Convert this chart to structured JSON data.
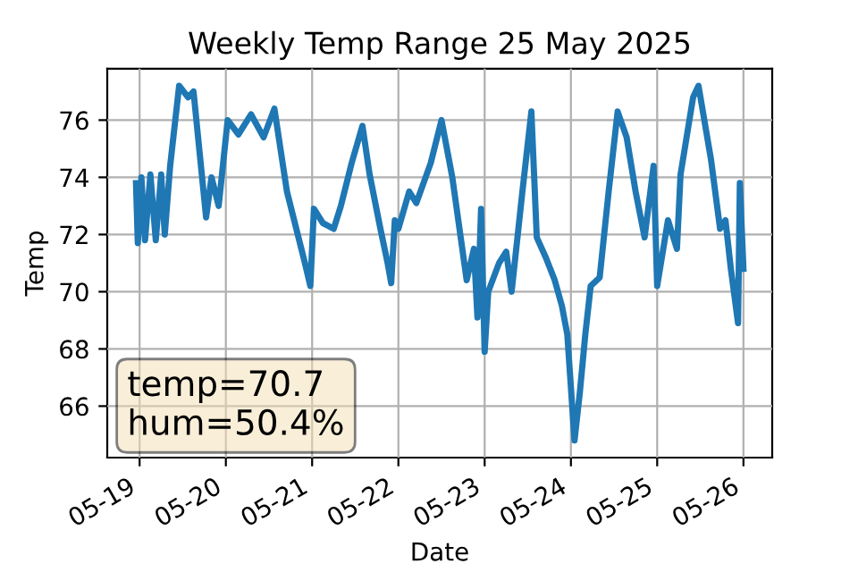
{
  "chart_data": {
    "type": "line",
    "title": "Weekly Temp Range 25 May 2025",
    "xlabel": "Date",
    "ylabel": "Temp",
    "annotations": [
      "temp=70.7\nhum=50.4%"
    ],
    "x": [
      "2025-05-18T23:00",
      "2025-05-18T23:30",
      "2025-05-19T00:30",
      "2025-05-19T01:30",
      "2025-05-19T03:00",
      "2025-05-19T04:30",
      "2025-05-19T06:00",
      "2025-05-19T07:00",
      "2025-05-19T08:30",
      "2025-05-19T11:00",
      "2025-05-19T13:30",
      "2025-05-19T15:00",
      "2025-05-19T18:30",
      "2025-05-19T20:00",
      "2025-05-19T22:00",
      "2025-05-20T00:30",
      "2025-05-20T03:30",
      "2025-05-20T07:00",
      "2025-05-20T10:30",
      "2025-05-20T13:30",
      "2025-05-20T17:00",
      "2025-05-20T20:00",
      "2025-05-20T22:00",
      "2025-05-20T23:30",
      "2025-05-21T00:30",
      "2025-05-21T03:00",
      "2025-05-21T06:00",
      "2025-05-21T08:00",
      "2025-05-21T11:00",
      "2025-05-21T14:00",
      "2025-05-21T16:00",
      "2025-05-21T19:00",
      "2025-05-21T21:00",
      "2025-05-21T22:00",
      "2025-05-21T23:00",
      "2025-05-22T00:00",
      "2025-05-22T03:00",
      "2025-05-22T05:00",
      "2025-05-22T09:00",
      "2025-05-22T12:00",
      "2025-05-22T15:00",
      "2025-05-22T17:00",
      "2025-05-22T19:00",
      "2025-05-22T21:00",
      "2025-05-22T22:00",
      "2025-05-22T23:00",
      "2025-05-23T00:00",
      "2025-05-23T01:00",
      "2025-05-23T04:00",
      "2025-05-23T06:00",
      "2025-05-23T07:30",
      "2025-05-23T10:30",
      "2025-05-23T13:00",
      "2025-05-23T14:30",
      "2025-05-23T17:00",
      "2025-05-23T19:30",
      "2025-05-23T21:30",
      "2025-05-23T23:00",
      "2025-05-24T01:00",
      "2025-05-24T02:30",
      "2025-05-24T04:00",
      "2025-05-24T05:30",
      "2025-05-24T08:00",
      "2025-05-24T10:30",
      "2025-05-24T13:00",
      "2025-05-24T15:30",
      "2025-05-24T18:00",
      "2025-05-24T20:30",
      "2025-05-24T23:00",
      "2025-05-25T00:00",
      "2025-05-25T03:00",
      "2025-05-25T05:30",
      "2025-05-25T06:30",
      "2025-05-25T10:00",
      "2025-05-25T11:30",
      "2025-05-25T15:00",
      "2025-05-25T17:30",
      "2025-05-25T19:00",
      "2025-05-25T20:30",
      "2025-05-25T22:30",
      "2025-05-25T23:00",
      "2025-05-26T00:00"
    ],
    "series": [
      {
        "color": "#1f77b4",
        "values": [
          73.8,
          71.7,
          74.0,
          71.8,
          74.1,
          71.8,
          74.1,
          72.0,
          74.4,
          77.2,
          76.8,
          77.0,
          72.6,
          74.0,
          73.0,
          76.0,
          75.5,
          76.2,
          75.4,
          76.4,
          73.5,
          72.0,
          71.0,
          70.2,
          72.9,
          72.4,
          72.2,
          73.0,
          74.5,
          75.8,
          74.1,
          72.2,
          71.0,
          70.3,
          72.5,
          72.2,
          73.5,
          73.1,
          74.5,
          76.0,
          74.0,
          72.2,
          70.4,
          71.5,
          69.1,
          72.9,
          67.9,
          70.0,
          71.0,
          71.4,
          70.0,
          73.5,
          76.3,
          71.9,
          71.2,
          70.4,
          69.5,
          68.5,
          64.8,
          66.5,
          68.5,
          70.2,
          70.5,
          73.5,
          76.3,
          75.4,
          73.5,
          71.9,
          74.4,
          70.2,
          72.5,
          71.5,
          74.1,
          76.8,
          77.2,
          74.6,
          72.2,
          72.5,
          70.8,
          68.9,
          73.8,
          70.8
        ]
      }
    ],
    "xlim": [
      "2025-05-18T15:00",
      "2025-05-26T08:00"
    ],
    "xticks": [
      {
        "value": "2025-05-19",
        "label": "05-19"
      },
      {
        "value": "2025-05-20",
        "label": "05-20"
      },
      {
        "value": "2025-05-21",
        "label": "05-21"
      },
      {
        "value": "2025-05-22",
        "label": "05-22"
      },
      {
        "value": "2025-05-23",
        "label": "05-23"
      },
      {
        "value": "2025-05-24",
        "label": "05-24"
      },
      {
        "value": "2025-05-25",
        "label": "05-25"
      },
      {
        "value": "2025-05-26",
        "label": "05-26"
      }
    ],
    "ylim": [
      64.2,
      77.8
    ],
    "yticks": [
      66,
      68,
      70,
      72,
      74,
      76
    ],
    "grid": true
  }
}
